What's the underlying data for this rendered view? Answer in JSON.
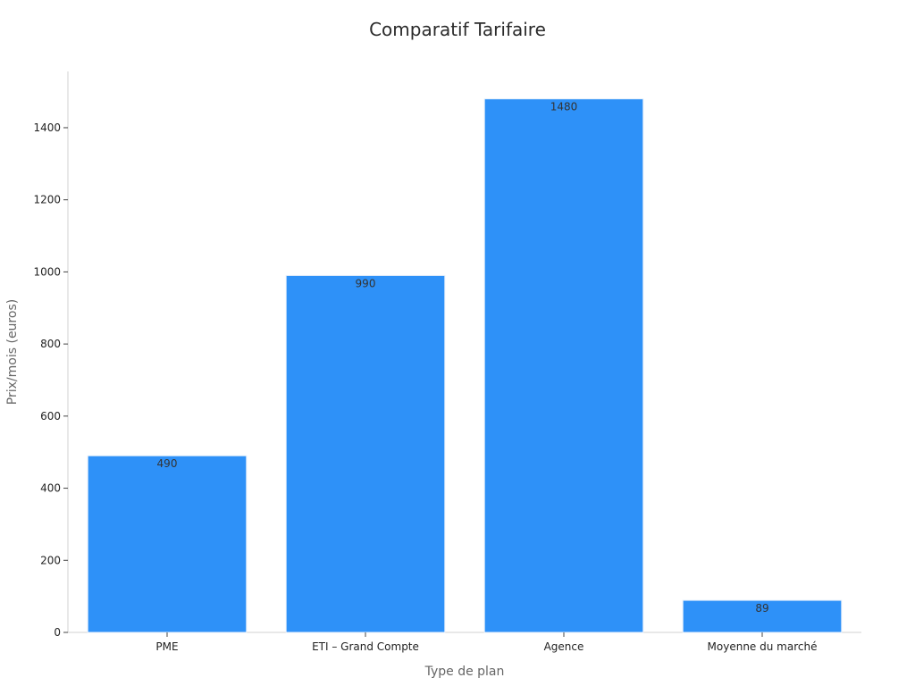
{
  "chart_data": {
    "type": "bar",
    "title": "Comparatif Tarifaire",
    "xlabel": "Type de plan",
    "ylabel": "Prix/mois (euros)",
    "categories": [
      "PME",
      "ETI – Grand Compte",
      "Agence",
      "Moyenne du marché"
    ],
    "values": [
      490,
      990,
      1480,
      89
    ],
    "data_labels": [
      "490",
      "990",
      "1480",
      "89"
    ],
    "ylim": [
      0,
      1556
    ],
    "yticks": [
      0,
      200,
      400,
      600,
      800,
      1000,
      1200,
      1400
    ],
    "ytick_labels": [
      "0",
      "200",
      "400",
      "600",
      "800",
      "1000",
      "1200",
      "1400"
    ],
    "grid": false,
    "legend": "none",
    "colors": {
      "bar": "#2e91f8",
      "text": "#2b2b2b"
    }
  }
}
